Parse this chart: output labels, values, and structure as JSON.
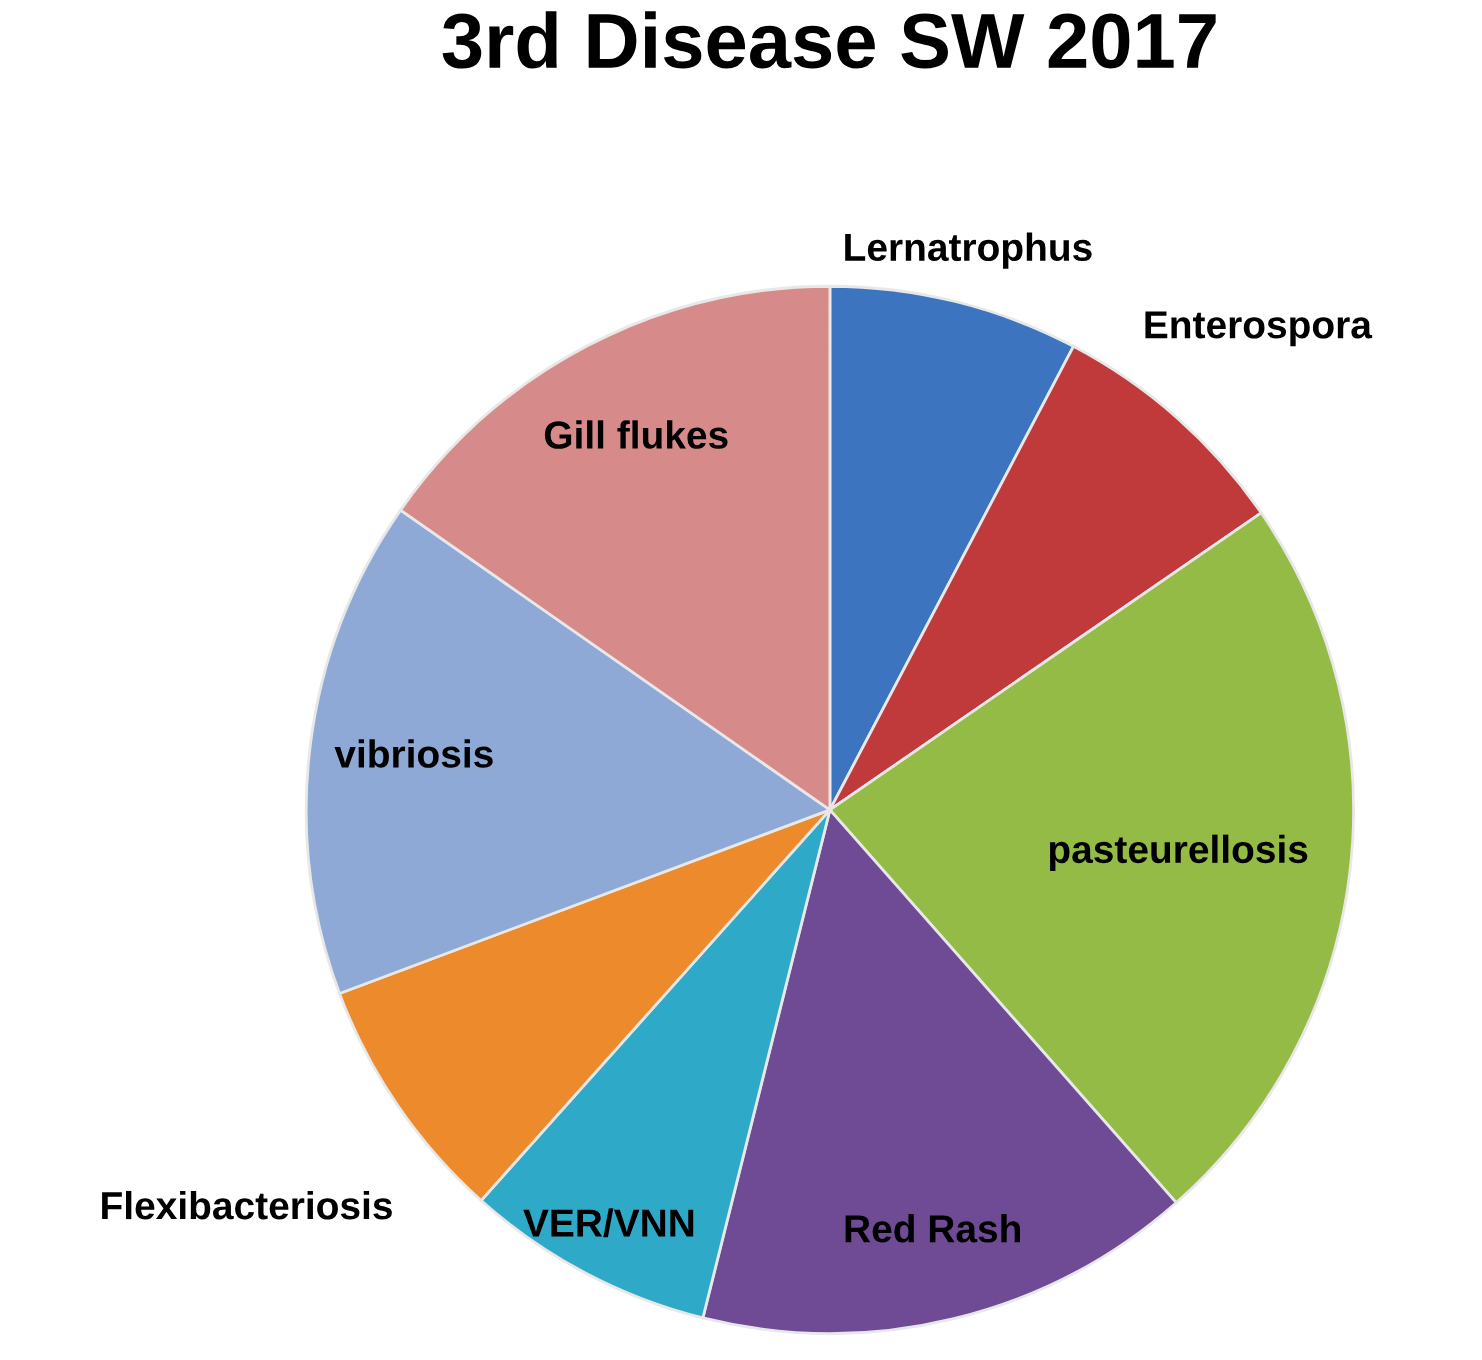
{
  "chart_data": {
    "type": "pie",
    "title": "3rd Disease SW 2017",
    "categories": [
      "Lernatrophus",
      "Enterospora",
      "pasteurellosis",
      "Red Rash",
      "VER/VNN",
      "Flexibacteriosis",
      "vibriosis",
      "Gill flukes"
    ],
    "values": [
      7.7,
      7.7,
      23.1,
      15.4,
      7.7,
      7.7,
      15.4,
      15.3
    ],
    "colors": [
      "#3c74c0",
      "#c0393b",
      "#93bb45",
      "#6e4b94",
      "#2fa9c8",
      "#ed8a2c",
      "#8fa9d6",
      "#d68b8a"
    ],
    "legend": false
  }
}
